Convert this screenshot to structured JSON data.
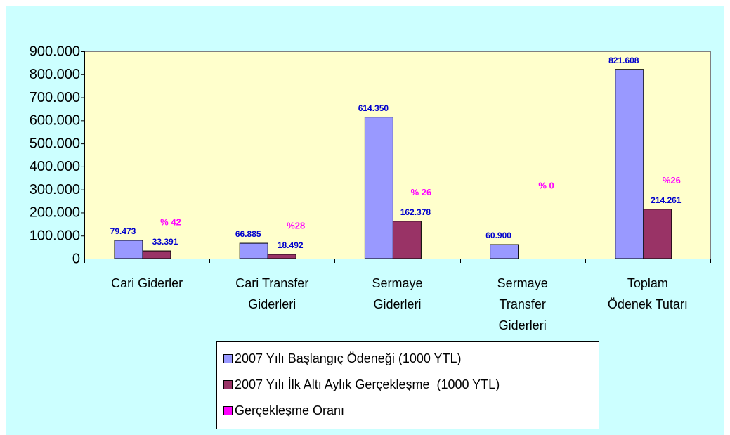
{
  "chart_data": {
    "type": "bar",
    "categories": [
      "Cari Giderler",
      "Cari Transfer Giderleri",
      "Sermaye Giderleri",
      "Sermaye Transfer Giderleri",
      "Toplam Ödenek Tutarı"
    ],
    "series": [
      {
        "name": "2007 Yılı Başlangıç Ödeneği (1000 YTL)",
        "color": "#9999ff",
        "label_color": "#0000cc",
        "values": [
          79473,
          66885,
          614350,
          60900,
          821608
        ],
        "value_labels": [
          "79.473",
          "66.885",
          "614.350",
          "60.900",
          "821.608"
        ]
      },
      {
        "name": "2007 Yılı İlk Altı Aylık Gerçekleşme  (1000 YTL)",
        "color": "#993366",
        "label_color": "#0000cc",
        "values": [
          33391,
          18492,
          162378,
          null,
          214261
        ],
        "value_labels": [
          "33.391",
          "18.492",
          "162.378",
          null,
          "214.261"
        ]
      },
      {
        "name": "Gerçekleşme Oranı",
        "color": "#ff00ff",
        "label_color": "#ff00ff",
        "values": [
          42,
          28,
          26,
          0,
          26
        ],
        "value_labels": [
          "% 42",
          "%28",
          "% 26",
          "% 0",
          "%26"
        ]
      }
    ],
    "ylim": [
      0,
      900000
    ],
    "yticks": [
      0,
      {
        "value": 100000,
        "label": "100.000"
      },
      {
        "value": 200000,
        "label": "200.000"
      },
      {
        "value": 300000,
        "label": "300.000"
      },
      {
        "value": 400000,
        "label": "400.000"
      },
      {
        "value": 500000,
        "label": "500.000"
      },
      {
        "value": 600000,
        "label": "600.000"
      },
      {
        "value": 700000,
        "label": "700.000"
      },
      {
        "value": 800000,
        "label": "800.000"
      },
      {
        "value": 900000,
        "label": "900.000"
      }
    ],
    "grid": false
  }
}
